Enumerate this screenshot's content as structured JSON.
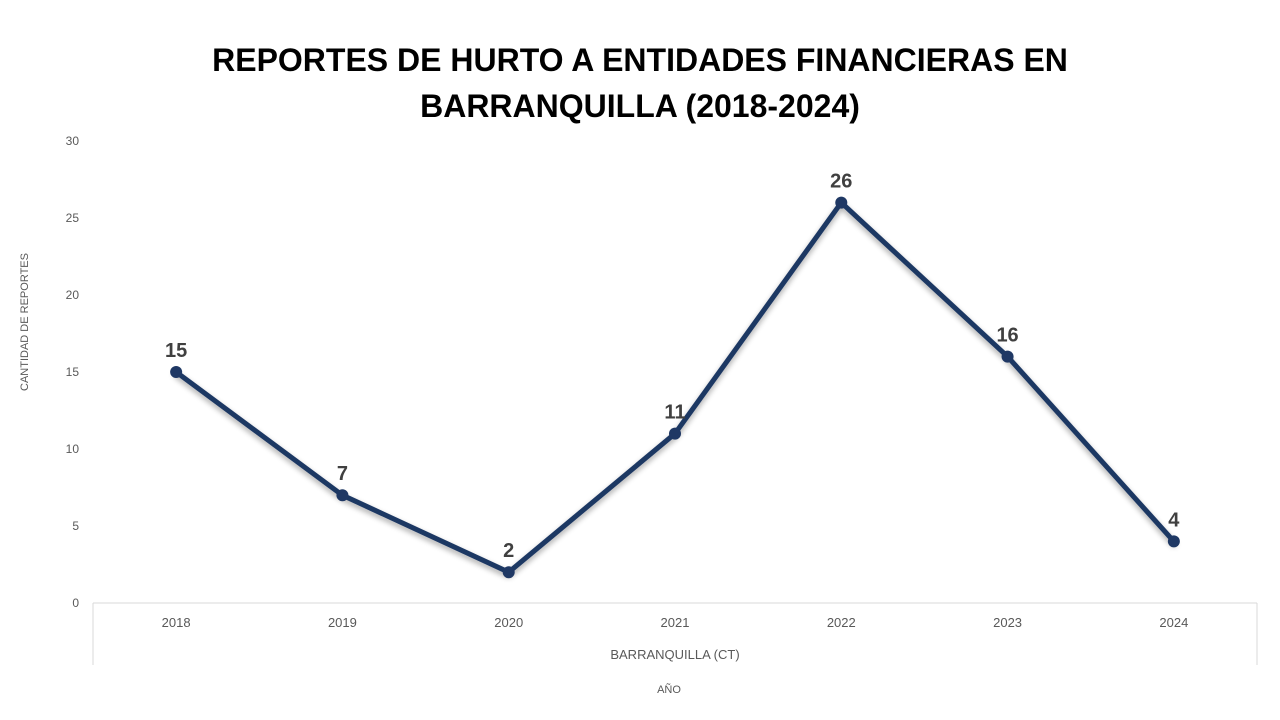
{
  "chart_data": {
    "type": "line",
    "title": "REPORTES DE HURTO A ENTIDADES FINANCIERAS EN BARRANQUILLA (2018-2024)",
    "title_lines": [
      "REPORTES DE HURTO A ENTIDADES FINANCIERAS EN",
      "BARRANQUILLA (2018-2024)"
    ],
    "categories": [
      "2018",
      "2019",
      "2020",
      "2021",
      "2022",
      "2023",
      "2024"
    ],
    "category_group": "BARRANQUILLA (CT)",
    "series": [
      {
        "values": [
          15,
          7,
          2,
          11,
          26,
          16,
          4
        ],
        "color": "#1F3864"
      }
    ],
    "xlabel": "AÑO",
    "ylabel": "CANTIDAD DE REPORTES",
    "ylim": [
      0,
      30
    ],
    "yticks": [
      0,
      5,
      10,
      15,
      20,
      25,
      30
    ],
    "data_labels": true,
    "grid": false,
    "legend": "none"
  }
}
